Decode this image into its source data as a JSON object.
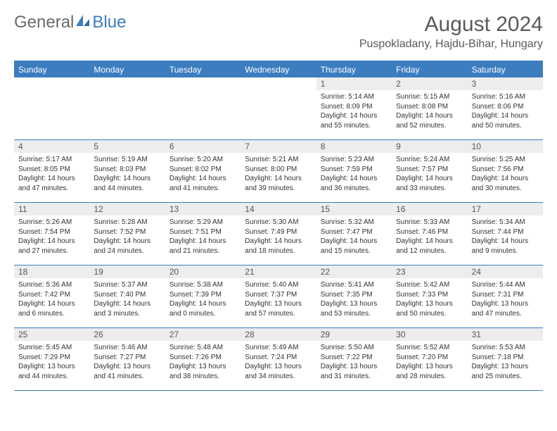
{
  "logo": {
    "general": "General",
    "blue": "Blue"
  },
  "title": "August 2024",
  "location": "Puspokladany, Hajdu-Bihar, Hungary",
  "colors": {
    "accent": "#3b7dbf",
    "header_text": "#ffffff",
    "daynum_bg": "#ededed",
    "text": "#333333",
    "title_text": "#5a5a5a"
  },
  "day_names": [
    "Sunday",
    "Monday",
    "Tuesday",
    "Wednesday",
    "Thursday",
    "Friday",
    "Saturday"
  ],
  "weeks": [
    [
      {
        "n": "",
        "sr": "",
        "ss": "",
        "dl": ""
      },
      {
        "n": "",
        "sr": "",
        "ss": "",
        "dl": ""
      },
      {
        "n": "",
        "sr": "",
        "ss": "",
        "dl": ""
      },
      {
        "n": "",
        "sr": "",
        "ss": "",
        "dl": ""
      },
      {
        "n": "1",
        "sr": "Sunrise: 5:14 AM",
        "ss": "Sunset: 8:09 PM",
        "dl": "Daylight: 14 hours and 55 minutes."
      },
      {
        "n": "2",
        "sr": "Sunrise: 5:15 AM",
        "ss": "Sunset: 8:08 PM",
        "dl": "Daylight: 14 hours and 52 minutes."
      },
      {
        "n": "3",
        "sr": "Sunrise: 5:16 AM",
        "ss": "Sunset: 8:06 PM",
        "dl": "Daylight: 14 hours and 50 minutes."
      }
    ],
    [
      {
        "n": "4",
        "sr": "Sunrise: 5:17 AM",
        "ss": "Sunset: 8:05 PM",
        "dl": "Daylight: 14 hours and 47 minutes."
      },
      {
        "n": "5",
        "sr": "Sunrise: 5:19 AM",
        "ss": "Sunset: 8:03 PM",
        "dl": "Daylight: 14 hours and 44 minutes."
      },
      {
        "n": "6",
        "sr": "Sunrise: 5:20 AM",
        "ss": "Sunset: 8:02 PM",
        "dl": "Daylight: 14 hours and 41 minutes."
      },
      {
        "n": "7",
        "sr": "Sunrise: 5:21 AM",
        "ss": "Sunset: 8:00 PM",
        "dl": "Daylight: 14 hours and 39 minutes."
      },
      {
        "n": "8",
        "sr": "Sunrise: 5:23 AM",
        "ss": "Sunset: 7:59 PM",
        "dl": "Daylight: 14 hours and 36 minutes."
      },
      {
        "n": "9",
        "sr": "Sunrise: 5:24 AM",
        "ss": "Sunset: 7:57 PM",
        "dl": "Daylight: 14 hours and 33 minutes."
      },
      {
        "n": "10",
        "sr": "Sunrise: 5:25 AM",
        "ss": "Sunset: 7:56 PM",
        "dl": "Daylight: 14 hours and 30 minutes."
      }
    ],
    [
      {
        "n": "11",
        "sr": "Sunrise: 5:26 AM",
        "ss": "Sunset: 7:54 PM",
        "dl": "Daylight: 14 hours and 27 minutes."
      },
      {
        "n": "12",
        "sr": "Sunrise: 5:28 AM",
        "ss": "Sunset: 7:52 PM",
        "dl": "Daylight: 14 hours and 24 minutes."
      },
      {
        "n": "13",
        "sr": "Sunrise: 5:29 AM",
        "ss": "Sunset: 7:51 PM",
        "dl": "Daylight: 14 hours and 21 minutes."
      },
      {
        "n": "14",
        "sr": "Sunrise: 5:30 AM",
        "ss": "Sunset: 7:49 PM",
        "dl": "Daylight: 14 hours and 18 minutes."
      },
      {
        "n": "15",
        "sr": "Sunrise: 5:32 AM",
        "ss": "Sunset: 7:47 PM",
        "dl": "Daylight: 14 hours and 15 minutes."
      },
      {
        "n": "16",
        "sr": "Sunrise: 5:33 AM",
        "ss": "Sunset: 7:46 PM",
        "dl": "Daylight: 14 hours and 12 minutes."
      },
      {
        "n": "17",
        "sr": "Sunrise: 5:34 AM",
        "ss": "Sunset: 7:44 PM",
        "dl": "Daylight: 14 hours and 9 minutes."
      }
    ],
    [
      {
        "n": "18",
        "sr": "Sunrise: 5:36 AM",
        "ss": "Sunset: 7:42 PM",
        "dl": "Daylight: 14 hours and 6 minutes."
      },
      {
        "n": "19",
        "sr": "Sunrise: 5:37 AM",
        "ss": "Sunset: 7:40 PM",
        "dl": "Daylight: 14 hours and 3 minutes."
      },
      {
        "n": "20",
        "sr": "Sunrise: 5:38 AM",
        "ss": "Sunset: 7:39 PM",
        "dl": "Daylight: 14 hours and 0 minutes."
      },
      {
        "n": "21",
        "sr": "Sunrise: 5:40 AM",
        "ss": "Sunset: 7:37 PM",
        "dl": "Daylight: 13 hours and 57 minutes."
      },
      {
        "n": "22",
        "sr": "Sunrise: 5:41 AM",
        "ss": "Sunset: 7:35 PM",
        "dl": "Daylight: 13 hours and 53 minutes."
      },
      {
        "n": "23",
        "sr": "Sunrise: 5:42 AM",
        "ss": "Sunset: 7:33 PM",
        "dl": "Daylight: 13 hours and 50 minutes."
      },
      {
        "n": "24",
        "sr": "Sunrise: 5:44 AM",
        "ss": "Sunset: 7:31 PM",
        "dl": "Daylight: 13 hours and 47 minutes."
      }
    ],
    [
      {
        "n": "25",
        "sr": "Sunrise: 5:45 AM",
        "ss": "Sunset: 7:29 PM",
        "dl": "Daylight: 13 hours and 44 minutes."
      },
      {
        "n": "26",
        "sr": "Sunrise: 5:46 AM",
        "ss": "Sunset: 7:27 PM",
        "dl": "Daylight: 13 hours and 41 minutes."
      },
      {
        "n": "27",
        "sr": "Sunrise: 5:48 AM",
        "ss": "Sunset: 7:26 PM",
        "dl": "Daylight: 13 hours and 38 minutes."
      },
      {
        "n": "28",
        "sr": "Sunrise: 5:49 AM",
        "ss": "Sunset: 7:24 PM",
        "dl": "Daylight: 13 hours and 34 minutes."
      },
      {
        "n": "29",
        "sr": "Sunrise: 5:50 AM",
        "ss": "Sunset: 7:22 PM",
        "dl": "Daylight: 13 hours and 31 minutes."
      },
      {
        "n": "30",
        "sr": "Sunrise: 5:52 AM",
        "ss": "Sunset: 7:20 PM",
        "dl": "Daylight: 13 hours and 28 minutes."
      },
      {
        "n": "31",
        "sr": "Sunrise: 5:53 AM",
        "ss": "Sunset: 7:18 PM",
        "dl": "Daylight: 13 hours and 25 minutes."
      }
    ]
  ]
}
